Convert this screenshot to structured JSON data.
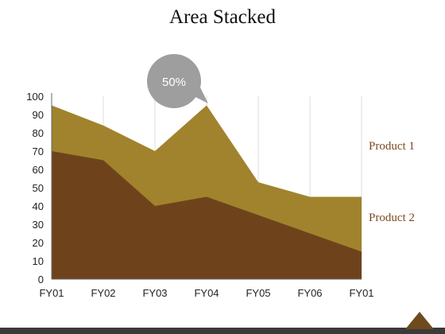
{
  "title": "Area Stacked",
  "callout": {
    "text": "50%",
    "color": "#9e9e9e"
  },
  "footer": {
    "bar_color": "#3a3a3a",
    "triangle_color": "#6e4a1e"
  },
  "chart_data": {
    "type": "area",
    "title": "Area Stacked",
    "categories": [
      "FY01",
      "FY02",
      "FY03",
      "FY04",
      "FY05",
      "FY06",
      "FY01"
    ],
    "ylim": [
      0,
      100
    ],
    "yticks": [
      0,
      10,
      20,
      30,
      40,
      50,
      60,
      70,
      80,
      90,
      100
    ],
    "grid": {
      "vertical": true,
      "horizontal": false
    },
    "legend": "right",
    "series": [
      {
        "name": "Product 1",
        "color": "#a0832c",
        "values": [
          95,
          84,
          70,
          95,
          53,
          45,
          45
        ]
      },
      {
        "name": "Product 2",
        "color": "#6e431c",
        "values": [
          70,
          65,
          40,
          45,
          35,
          25,
          15
        ]
      }
    ]
  }
}
